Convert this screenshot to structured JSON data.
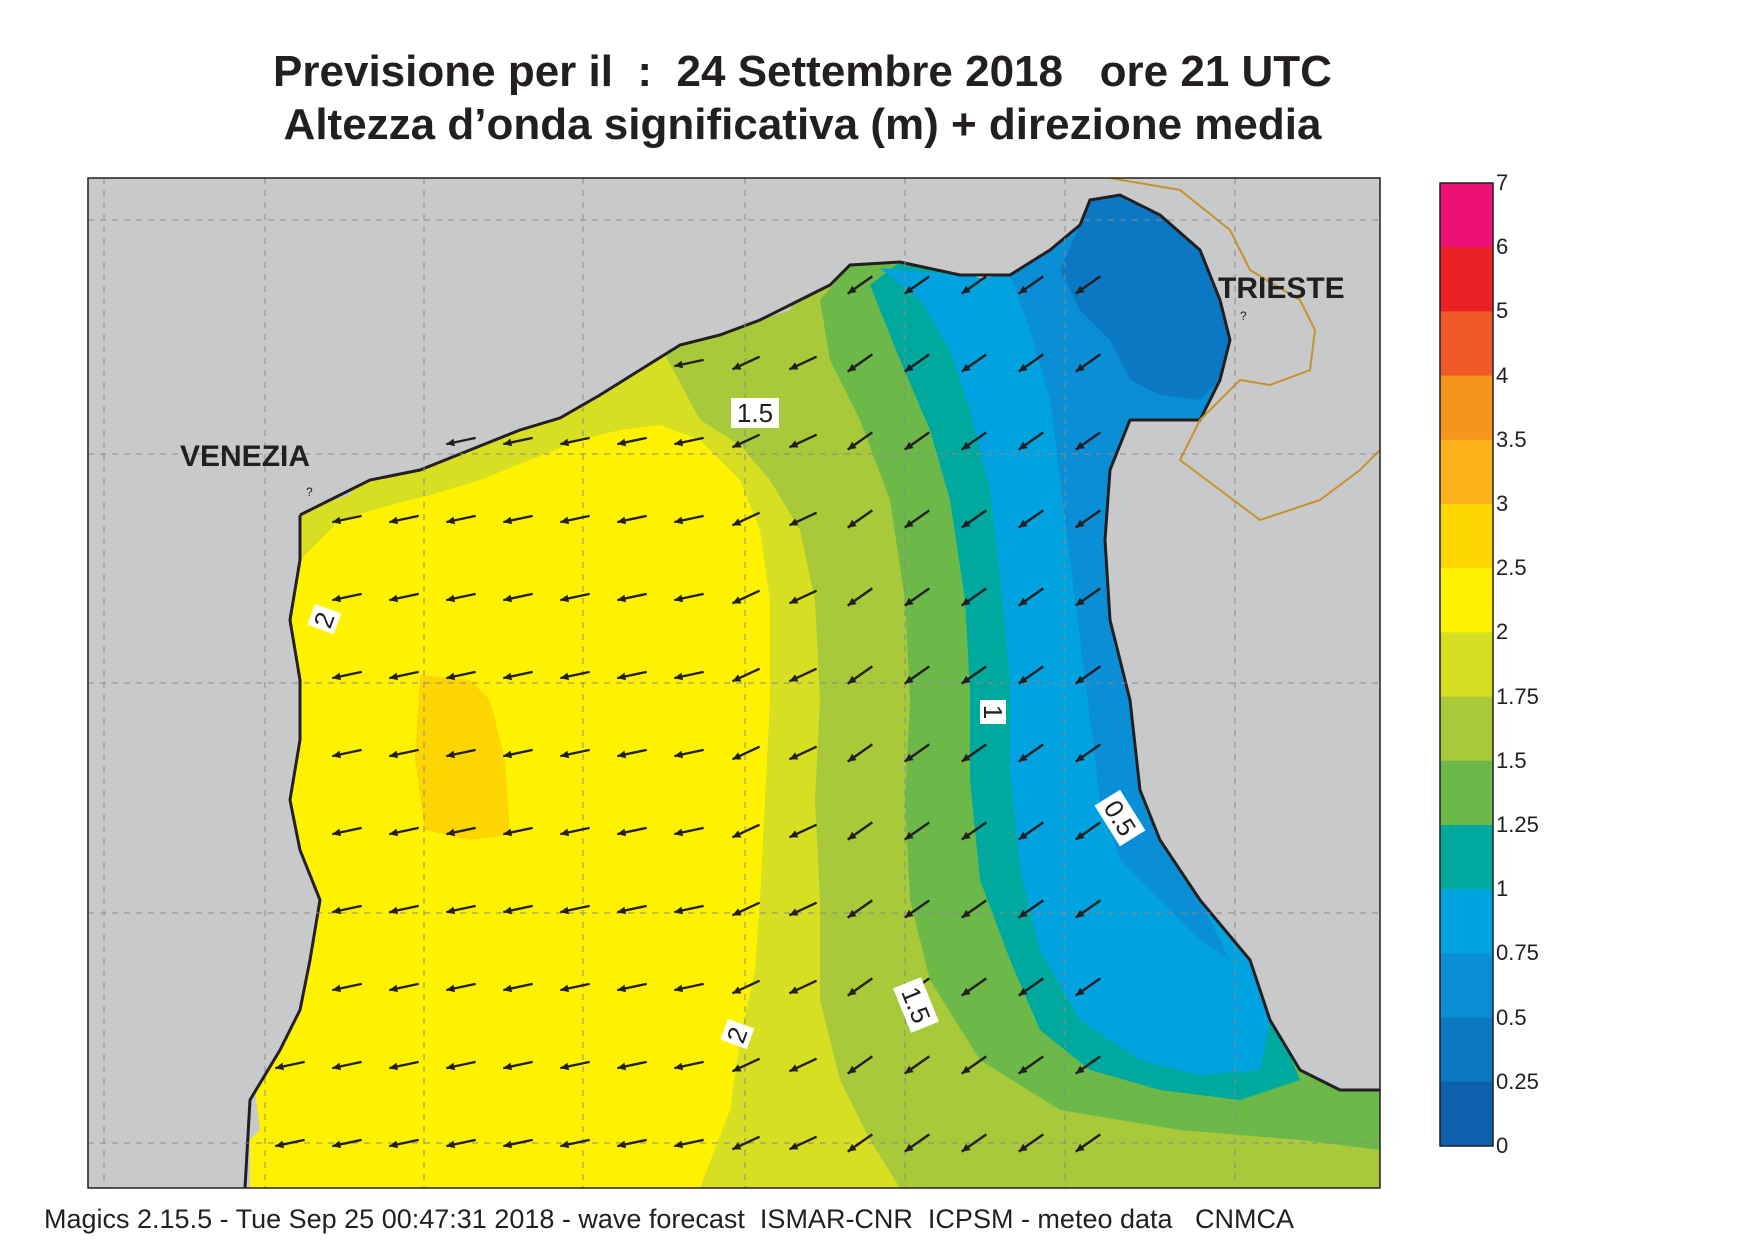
{
  "title": {
    "line1": "Previsione per il  :  24 Settembre 2018   ore 21 UTC",
    "line2": "Altezza d’onda significativa (m) + direzione media"
  },
  "cities": {
    "venezia": "VENEZIA",
    "trieste": "TRIESTE"
  },
  "colorbar": {
    "labels": [
      "7",
      "6",
      "5",
      "4",
      "3.5",
      "3",
      "2.5",
      "2",
      "1.75",
      "1.5",
      "1.25",
      "1",
      "0.75",
      "0.5",
      "0.25",
      "0"
    ],
    "colors": [
      "#ec1077",
      "#ea2024",
      "#f05a28",
      "#f7941d",
      "#fbb117",
      "#fdd500",
      "#fff200",
      "#d7df23",
      "#a7c93a",
      "#6cb94a",
      "#00a99d",
      "#00a3e0",
      "#0a8fd6",
      "#0a78c2",
      "#0d60ab"
    ]
  },
  "contour_labels": [
    "1.5",
    "2",
    "1",
    "0.5",
    "1.5",
    "2"
  ],
  "map": {
    "sea_colors": {
      "h2_25": "#fdd500",
      "h2": "#fff200",
      "h175": "#d7df23",
      "h15": "#a7c93a",
      "h125": "#6cb94a",
      "h1": "#00a99d",
      "h075": "#00a3e0",
      "h05": "#0a8fd6",
      "h025": "#0a78c2"
    },
    "land_color": "#c8c9cb",
    "wave_direction": "toward west-southwest"
  },
  "footer": "Magics 2.15.5 - Tue Sep 25 00:47:31 2018 - wave forecast  ISMAR-CNR  ICPSM - meteo data   CNMCA"
}
